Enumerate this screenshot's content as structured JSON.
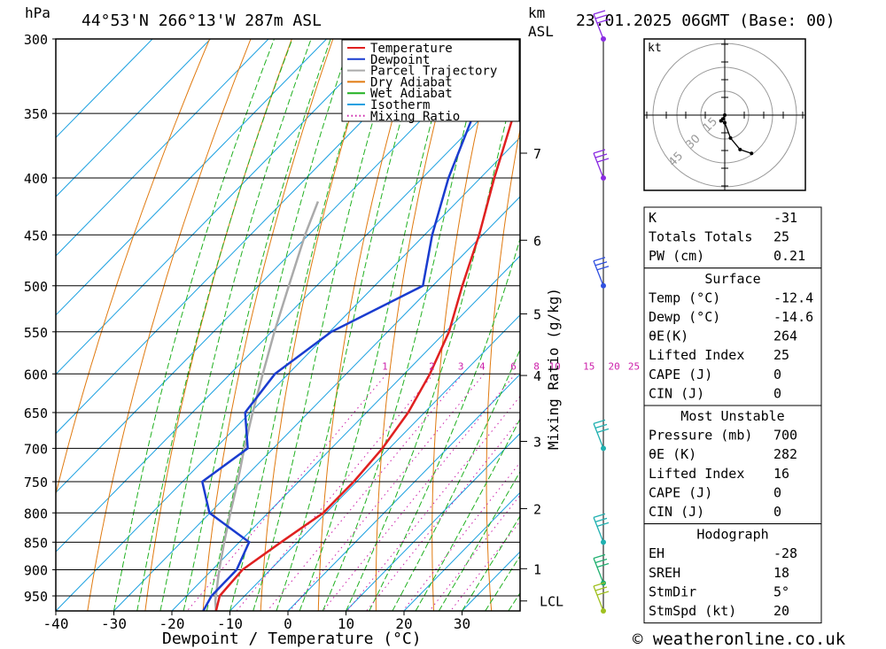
{
  "header": {
    "hpa_unit": "hPa",
    "location": "44°53'N  266°13'W  287m  ASL",
    "km_unit": "km",
    "asl_unit": "ASL",
    "datetime": "23.01.2025  06GMT  (Base: 00)"
  },
  "chart_data": {
    "type": "skew-t",
    "xlabel": "Dewpoint / Temperature (°C)",
    "ylabel_left": "hPa",
    "ylabel_mixing": "Mixing Ratio (g/kg)",
    "x_ticks": [
      "-40",
      "-30",
      "-20",
      "-10",
      "0",
      "10",
      "20",
      "30"
    ],
    "x_tick_values": [
      -40,
      -30,
      -20,
      -10,
      0,
      10,
      20,
      30
    ],
    "y_ticks": [
      "300",
      "350",
      "400",
      "450",
      "500",
      "550",
      "600",
      "650",
      "700",
      "750",
      "800",
      "850",
      "900",
      "950"
    ],
    "y_tick_values": [
      300,
      350,
      400,
      450,
      500,
      550,
      600,
      650,
      700,
      750,
      800,
      850,
      900,
      950
    ],
    "km_ticks": [
      {
        "label": "7",
        "p": 380
      },
      {
        "label": "6",
        "p": 455
      },
      {
        "label": "5",
        "p": 530
      },
      {
        "label": "4",
        "p": 602
      },
      {
        "label": "3",
        "p": 690
      },
      {
        "label": "2",
        "p": 793
      },
      {
        "label": "1",
        "p": 898
      },
      {
        "label": "LCL",
        "p": 960
      }
    ],
    "mixing_ratio_labels": [
      "1",
      "2",
      "3",
      "4",
      "6",
      "8",
      "10",
      "15",
      "20",
      "25"
    ],
    "mixing_ratio_values": [
      1,
      2,
      3,
      4,
      6,
      8,
      10,
      15,
      20,
      25
    ],
    "legend": {
      "position": "top-center",
      "entries": [
        {
          "name": "Temperature",
          "color": "#e02020",
          "style": "solid"
        },
        {
          "name": "Dewpoint",
          "color": "#1a3ccf",
          "style": "solid"
        },
        {
          "name": "Parcel Trajectory",
          "color": "#aaaaaa",
          "style": "solid"
        },
        {
          "name": "Dry Adiabat",
          "color": "#e07a10",
          "style": "solid"
        },
        {
          "name": "Wet Adiabat",
          "color": "#20b020",
          "style": "solid"
        },
        {
          "name": "Isotherm",
          "color": "#1aa0e0",
          "style": "solid"
        },
        {
          "name": "Mixing Ratio",
          "color": "#cc20aa",
          "style": "dotted"
        }
      ]
    },
    "series": [
      {
        "name": "Temperature",
        "color": "#e02020",
        "points": [
          [
            980,
            -12.4
          ],
          [
            950,
            -14.3
          ],
          [
            900,
            -14.8
          ],
          [
            850,
            -12.8
          ],
          [
            800,
            -10.5
          ],
          [
            750,
            -10.5
          ],
          [
            700,
            -11.2
          ],
          [
            650,
            -12.8
          ],
          [
            600,
            -15.6
          ],
          [
            550,
            -19.4
          ],
          [
            500,
            -24.9
          ],
          [
            450,
            -30.6
          ],
          [
            400,
            -37.6
          ],
          [
            350,
            -45.1
          ],
          [
            320,
            -50.6
          ],
          [
            300,
            -53.4
          ]
        ]
      },
      {
        "name": "Dewpoint",
        "color": "#1a3ccf",
        "points": [
          [
            980,
            -14.6
          ],
          [
            950,
            -15.7
          ],
          [
            900,
            -15.8
          ],
          [
            850,
            -18.3
          ],
          [
            800,
            -30.1
          ],
          [
            750,
            -36.6
          ],
          [
            700,
            -34.4
          ],
          [
            650,
            -40.9
          ],
          [
            600,
            -42.3
          ],
          [
            550,
            -39.7
          ],
          [
            500,
            -31.7
          ],
          [
            450,
            -38.7
          ],
          [
            400,
            -45.5
          ],
          [
            350,
            -52.0
          ],
          [
            300,
            -58.0
          ]
        ]
      },
      {
        "name": "Parcel Trajectory",
        "color": "#aaaaaa",
        "points": [
          [
            980,
            -12.4
          ],
          [
            960,
            -14.2
          ],
          [
            900,
            -18.8
          ],
          [
            850,
            -22.6
          ],
          [
            800,
            -26.5
          ],
          [
            750,
            -30.5
          ],
          [
            700,
            -35.0
          ],
          [
            650,
            -39.6
          ],
          [
            600,
            -44.4
          ],
          [
            550,
            -49.5
          ],
          [
            500,
            -54.8
          ],
          [
            450,
            -60.6
          ],
          [
            420,
            -64.0
          ]
        ]
      }
    ],
    "wind_barbs": [
      {
        "p": 300,
        "color": "#8a2be2"
      },
      {
        "p": 400,
        "color": "#8a2be2"
      },
      {
        "p": 500,
        "color": "#3050e0"
      },
      {
        "p": 700,
        "color": "#20b0b0"
      },
      {
        "p": 850,
        "color": "#20b0b0"
      },
      {
        "p": 925,
        "color": "#20b070"
      },
      {
        "p": 980,
        "color": "#a0c020"
      }
    ],
    "colors": {
      "temperature": "#e02020",
      "dewpoint": "#1a3ccf",
      "parcel": "#aaaaaa",
      "dry_adiabat": "#e07a10",
      "wet_adiabat": "#20b020",
      "isotherm": "#1aa0e0",
      "mixing_ratio": "#cc20aa"
    }
  },
  "hodograph": {
    "unit": "kt",
    "ring_labels": [
      "15",
      "30",
      "45"
    ],
    "trace": [
      [
        0,
        0
      ],
      [
        -1,
        2
      ],
      [
        -2,
        3
      ],
      [
        0,
        4
      ],
      [
        3,
        12
      ],
      [
        8,
        18
      ],
      [
        14,
        20
      ]
    ],
    "trace_color": "#000000"
  },
  "indices": {
    "general": [
      {
        "label": "K",
        "value": "-31"
      },
      {
        "label": "Totals Totals",
        "value": "25"
      },
      {
        "label": "PW (cm)",
        "value": "0.21"
      }
    ],
    "surface_title": "Surface",
    "surface": [
      {
        "label": "Temp (°C)",
        "value": "-12.4"
      },
      {
        "label": "Dewp (°C)",
        "value": "-14.6"
      },
      {
        "label": "θE(K)",
        "value": "264"
      },
      {
        "label": "Lifted Index",
        "value": "25"
      },
      {
        "label": "CAPE (J)",
        "value": "0"
      },
      {
        "label": "CIN (J)",
        "value": "0"
      }
    ],
    "mu_title": "Most Unstable",
    "most_unstable": [
      {
        "label": "Pressure (mb)",
        "value": "700"
      },
      {
        "label": "θE (K)",
        "value": "282"
      },
      {
        "label": "Lifted Index",
        "value": "16"
      },
      {
        "label": "CAPE (J)",
        "value": "0"
      },
      {
        "label": "CIN (J)",
        "value": "0"
      }
    ],
    "hodo_title": "Hodograph",
    "hodo": [
      {
        "label": "EH",
        "value": "-28"
      },
      {
        "label": "SREH",
        "value": "18"
      },
      {
        "label": "StmDir",
        "value": "5°"
      },
      {
        "label": "StmSpd (kt)",
        "value": "20"
      }
    ]
  },
  "footer": {
    "copyright": "© weatheronline.co.uk"
  }
}
